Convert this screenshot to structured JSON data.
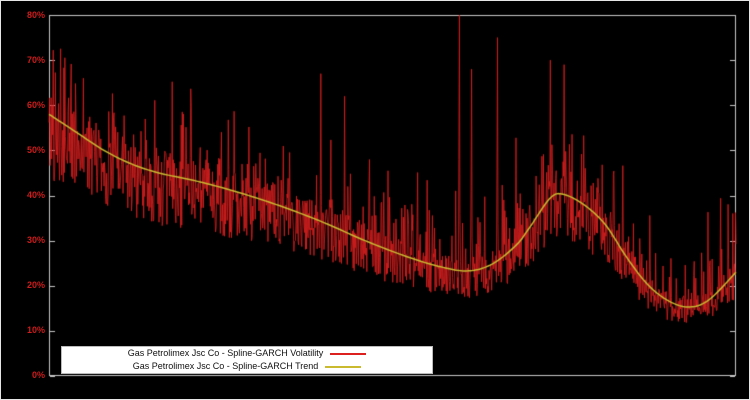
{
  "chart": {
    "background": "#000000",
    "plot_border_color": "#c8c8c8",
    "axis_label_color": "#cf1b1b",
    "yticks": [
      "80%",
      "70%",
      "60%",
      "50%",
      "40%",
      "30%",
      "20%",
      "10%",
      "0%"
    ],
    "legend": {
      "bg": "#ffffff",
      "entries": [
        {
          "label": "Gas Petrolimex Jsc Co - Spline-GARCH Volatility",
          "color": "#dc1f1f"
        },
        {
          "label": "Gas Petrolimex Jsc Co - Spline-GARCH Trend",
          "color": "#c9ba30"
        }
      ]
    }
  },
  "chart_data": {
    "type": "line",
    "title": "",
    "xlabel": "",
    "ylabel": "",
    "ylim": [
      0,
      80
    ],
    "yticks_percent": [
      0,
      10,
      20,
      30,
      40,
      50,
      60,
      70,
      80
    ],
    "legend_position": "bottom-left-inside",
    "grid": false,
    "series": [
      {
        "name": "Gas Petrolimex Jsc Co - Spline-GARCH Volatility",
        "color": "#dc1f1f",
        "style": "noisy"
      },
      {
        "name": "Gas Petrolimex Jsc Co - Spline-GARCH Trend",
        "color": "#c9ba30",
        "style": "smooth"
      }
    ],
    "trend_points": {
      "x": [
        0,
        0.04,
        0.08,
        0.12,
        0.16,
        0.22,
        0.28,
        0.34,
        0.4,
        0.46,
        0.52,
        0.57,
        0.61,
        0.645,
        0.68,
        0.7,
        0.73,
        0.75,
        0.78,
        0.81,
        0.84,
        0.87,
        0.9,
        0.93,
        0.96,
        1.0
      ],
      "y": [
        58,
        54,
        50,
        47,
        45,
        43,
        40.5,
        37.5,
        34,
        30,
        26.5,
        24.2,
        23.3,
        24.8,
        29,
        33,
        39.5,
        40.2,
        37.8,
        33.5,
        26.5,
        20.5,
        16.8,
        15.3,
        16.8,
        23
      ]
    },
    "volatility_render": {
      "n": 1300,
      "seed": 42,
      "base_lo": 0.74,
      "base_hi": 1.12,
      "spike_prob_small": 0.32,
      "spike_amp_small": 12,
      "spike_prob_big": 0.06,
      "spike_amp_big": 15,
      "clip": [
        4,
        80
      ]
    },
    "notable_spikes": [
      {
        "x": 0.05,
        "y": 66
      },
      {
        "x": 0.396,
        "y": 67
      },
      {
        "x": 0.43,
        "y": 62
      },
      {
        "x": 0.597,
        "y": 80
      },
      {
        "x": 0.615,
        "y": 68
      },
      {
        "x": 0.653,
        "y": 75
      },
      {
        "x": 0.73,
        "y": 70
      },
      {
        "x": 0.75,
        "y": 69
      }
    ]
  }
}
